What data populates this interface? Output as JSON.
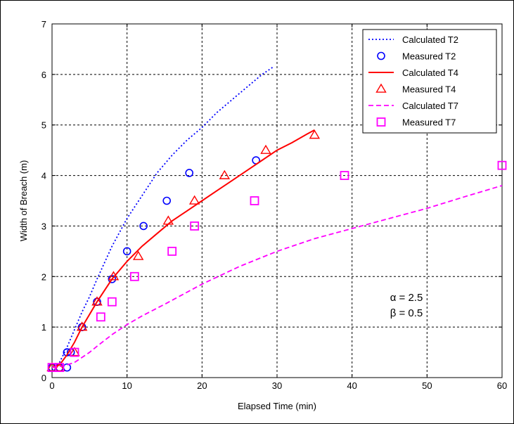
{
  "chart_data": {
    "type": "line",
    "xlabel": "Elapsed Time (min)",
    "ylabel": "Width of Breach (m)",
    "xlim": [
      0,
      60
    ],
    "ylim": [
      0,
      7
    ],
    "xticks": [
      "0",
      "10",
      "20",
      "30",
      "40",
      "50",
      "60"
    ],
    "yticks": [
      "0",
      "1",
      "2",
      "3",
      "4",
      "5",
      "6",
      "7"
    ],
    "grid": true,
    "legend_position": "top-right",
    "annotations": [
      "α  = 2.5",
      "β  = 0.5"
    ],
    "series": [
      {
        "name": "Calculated T2",
        "style": "dotted-line",
        "color": "#0000ff",
        "x": [
          0,
          1,
          2,
          3,
          4,
          5,
          6,
          8,
          10,
          12,
          14,
          16,
          18,
          20,
          22,
          24,
          26,
          28,
          29.5
        ],
        "y": [
          0.15,
          0.3,
          0.6,
          0.95,
          1.3,
          1.6,
          1.95,
          2.6,
          3.15,
          3.6,
          4.05,
          4.4,
          4.7,
          4.95,
          5.25,
          5.5,
          5.75,
          6.0,
          6.15
        ]
      },
      {
        "name": "Measured T2",
        "style": "circle",
        "color": "#0000ff",
        "x": [
          0,
          1,
          2,
          2,
          2.5,
          4,
          6,
          8,
          10,
          12.2,
          15.3,
          18.3,
          27.2
        ],
        "y": [
          0.2,
          0.2,
          0.2,
          0.5,
          0.5,
          1.0,
          1.5,
          1.95,
          2.5,
          3.0,
          3.5,
          4.05,
          4.3
        ]
      },
      {
        "name": "Calculated T4",
        "style": "solid-line",
        "color": "#ff0000",
        "x": [
          0,
          1,
          2,
          3,
          4,
          6,
          8,
          10,
          12,
          14,
          16,
          18,
          20,
          22,
          24,
          26,
          28,
          30,
          32,
          34,
          35
        ],
        "y": [
          0.2,
          0.25,
          0.45,
          0.7,
          1.0,
          1.5,
          1.95,
          2.3,
          2.6,
          2.85,
          3.1,
          3.3,
          3.5,
          3.7,
          3.9,
          4.1,
          4.3,
          4.5,
          4.65,
          4.82,
          4.9
        ]
      },
      {
        "name": "Measured T4",
        "style": "triangle",
        "color": "#ff0000",
        "x": [
          0,
          1,
          3,
          4,
          6,
          8.2,
          11.5,
          15.5,
          19,
          23,
          28.5,
          35
        ],
        "y": [
          0.2,
          0.2,
          0.5,
          1.0,
          1.5,
          2.0,
          2.4,
          3.1,
          3.5,
          4.0,
          4.5,
          4.8
        ]
      },
      {
        "name": "Calculated T7",
        "style": "dashed-line",
        "color": "#ff00ff",
        "x": [
          0,
          1,
          2,
          3,
          4,
          5,
          6,
          8,
          10,
          12,
          15,
          20,
          25,
          30,
          35,
          40,
          45,
          50,
          55,
          60
        ],
        "y": [
          0.2,
          0.22,
          0.25,
          0.3,
          0.4,
          0.5,
          0.62,
          0.85,
          1.05,
          1.22,
          1.45,
          1.85,
          2.2,
          2.5,
          2.75,
          2.95,
          3.15,
          3.35,
          3.58,
          3.8
        ]
      },
      {
        "name": "Measured T7",
        "style": "square",
        "color": "#ff00ff",
        "x": [
          0,
          1,
          3,
          6.5,
          8,
          11,
          16,
          19,
          27,
          39,
          60
        ],
        "y": [
          0.2,
          0.2,
          0.5,
          1.2,
          1.5,
          2.0,
          2.5,
          3.0,
          3.5,
          4.0,
          4.2
        ]
      }
    ]
  }
}
